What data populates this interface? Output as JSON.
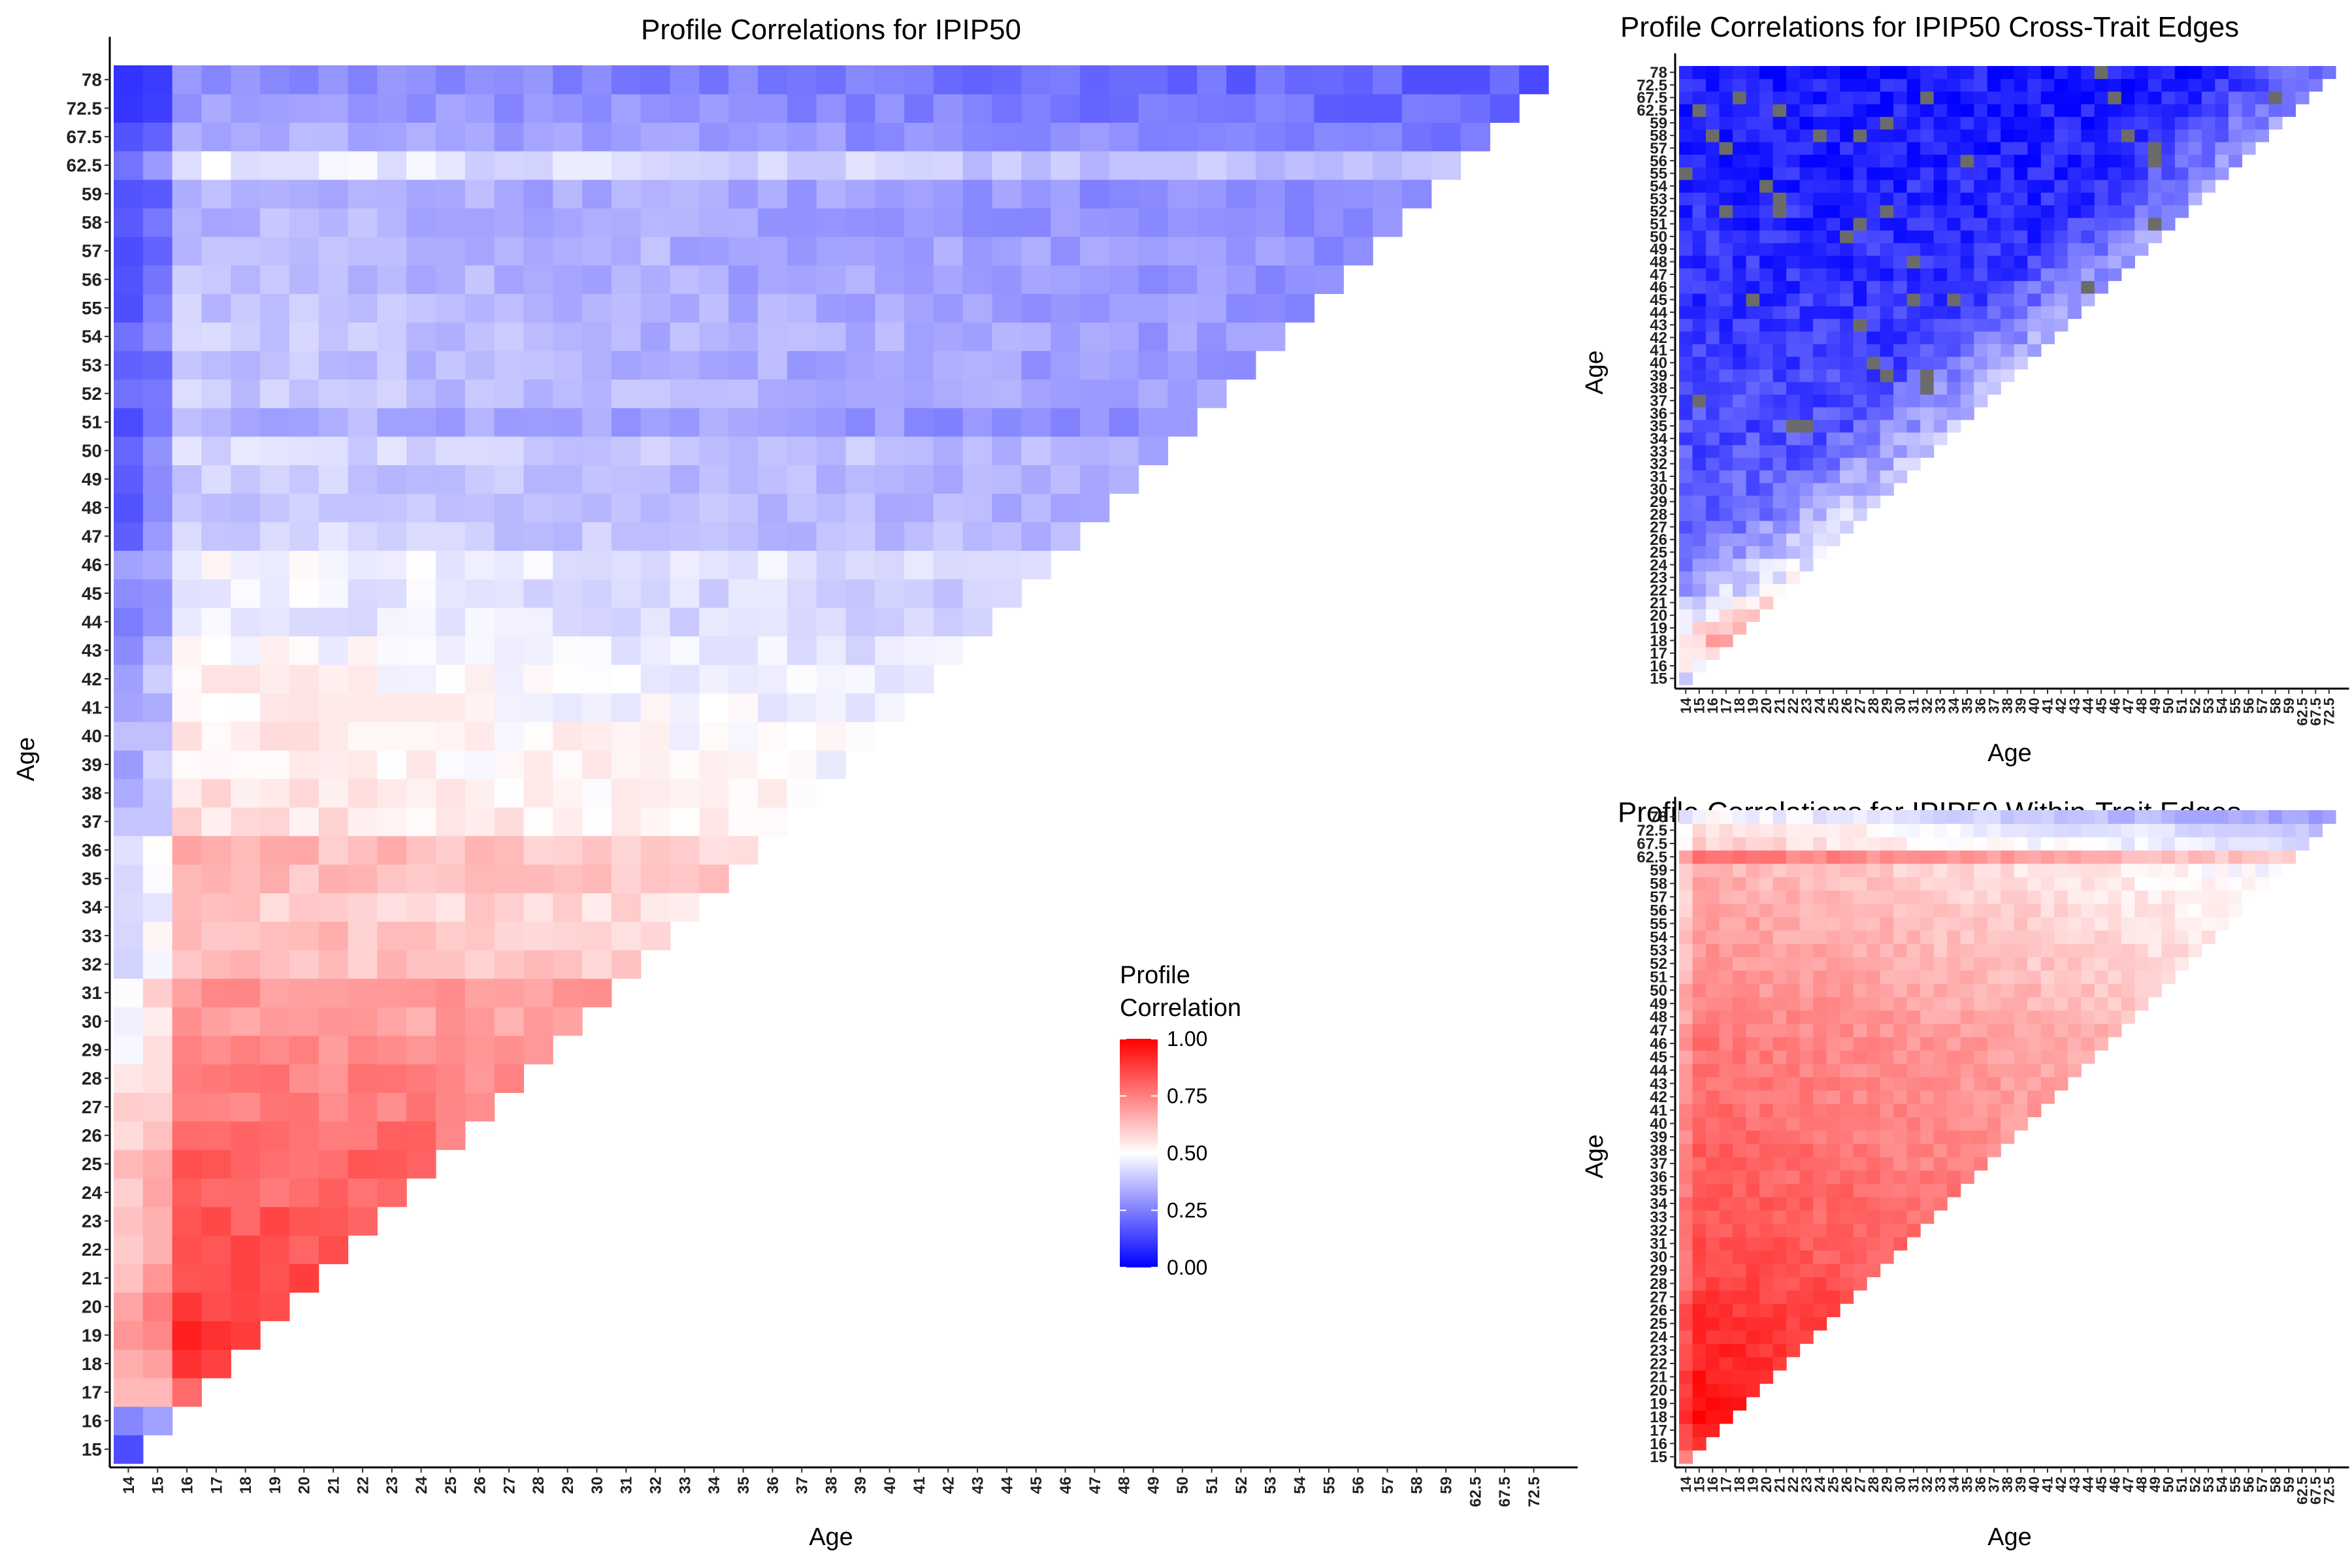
{
  "chart_data": [
    {
      "type": "heatmap",
      "title": "Profile Correlations for IPIP50",
      "xlabel": "Age",
      "ylabel": "Age",
      "ages": [
        "14",
        "15",
        "16",
        "17",
        "18",
        "19",
        "20",
        "21",
        "22",
        "23",
        "24",
        "25",
        "26",
        "27",
        "28",
        "29",
        "30",
        "31",
        "32",
        "33",
        "34",
        "35",
        "36",
        "37",
        "38",
        "39",
        "40",
        "41",
        "42",
        "43",
        "44",
        "45",
        "46",
        "47",
        "48",
        "49",
        "50",
        "51",
        "52",
        "53",
        "54",
        "55",
        "56",
        "57",
        "58",
        "59",
        "62.5",
        "67.5",
        "72.5",
        "78"
      ],
      "x_tick_labels": [
        "14",
        "15",
        "16",
        "17",
        "18",
        "19",
        "20",
        "21",
        "22",
        "23",
        "24",
        "25",
        "26",
        "27",
        "28",
        "29",
        "30",
        "31",
        "32",
        "33",
        "34",
        "35",
        "36",
        "37",
        "38",
        "39",
        "40",
        "41",
        "42",
        "43",
        "44",
        "45",
        "46",
        "47",
        "48",
        "49",
        "50",
        "51",
        "52",
        "53",
        "54",
        "55",
        "56",
        "57",
        "58",
        "59",
        "62.5",
        "67.5",
        "72.5"
      ],
      "y_tick_labels": [
        "15",
        "16",
        "17",
        "18",
        "19",
        "20",
        "21",
        "22",
        "23",
        "24",
        "25",
        "26",
        "27",
        "28",
        "29",
        "30",
        "31",
        "32",
        "33",
        "34",
        "35",
        "36",
        "37",
        "38",
        "39",
        "40",
        "41",
        "42",
        "43",
        "44",
        "45",
        "46",
        "47",
        "48",
        "49",
        "50",
        "51",
        "52",
        "53",
        "54",
        "55",
        "56",
        "57",
        "58",
        "59",
        "62.5",
        "67.5",
        "72.5",
        "78"
      ],
      "row_levels": {
        "15": 0.3,
        "16": 0.45,
        "17": 0.78,
        "18": 0.85,
        "19": 0.88,
        "20": 0.86,
        "21": 0.84,
        "22": 0.82,
        "23": 0.81,
        "24": 0.78,
        "25": 0.79,
        "26": 0.77,
        "27": 0.74,
        "28": 0.73,
        "29": 0.7,
        "30": 0.68,
        "31": 0.69,
        "32": 0.62,
        "33": 0.61,
        "34": 0.58,
        "35": 0.62,
        "36": 0.62,
        "37": 0.54,
        "38": 0.53,
        "39": 0.52,
        "40": 0.52,
        "41": 0.5,
        "42": 0.5,
        "43": 0.48,
        "44": 0.45,
        "45": 0.45,
        "46": 0.47,
        "47": 0.4,
        "48": 0.38,
        "49": 0.38,
        "50": 0.41,
        "51": 0.33,
        "52": 0.37,
        "53": 0.36,
        "54": 0.37,
        "55": 0.36,
        "56": 0.35,
        "57": 0.36,
        "58": 0.34,
        "59": 0.34,
        "62.5": 0.44,
        "67.5": 0.32,
        "72.5": 0.29,
        "78": 0.27
      }
    },
    {
      "type": "heatmap",
      "title": "Profile Correlations for IPIP50 Cross-Trait Edges",
      "xlabel": "Age",
      "ylabel": "Age",
      "ages": [
        "14",
        "15",
        "16",
        "17",
        "18",
        "19",
        "20",
        "21",
        "22",
        "23",
        "24",
        "25",
        "26",
        "27",
        "28",
        "29",
        "30",
        "31",
        "32",
        "33",
        "34",
        "35",
        "36",
        "37",
        "38",
        "39",
        "40",
        "41",
        "42",
        "43",
        "44",
        "45",
        "46",
        "47",
        "48",
        "49",
        "50",
        "51",
        "52",
        "53",
        "54",
        "55",
        "56",
        "57",
        "58",
        "59",
        "62.5",
        "67.5",
        "72.5",
        "78"
      ],
      "na_color": "#6b6b6b",
      "row_levels": {
        "15": 0.15,
        "16": 0.3,
        "17": 0.4,
        "18": 0.45,
        "19": 0.4,
        "20": 0.35,
        "21": 0.32,
        "22": 0.28,
        "23": 0.26,
        "24": 0.25,
        "25": 0.24,
        "26": 0.22,
        "27": 0.21,
        "28": 0.2,
        "29": 0.19,
        "30": 0.19,
        "31": 0.18,
        "32": 0.17,
        "33": 0.16,
        "34": 0.16,
        "35": 0.15,
        "36": 0.15,
        "37": 0.14,
        "38": 0.14,
        "39": 0.13,
        "40": 0.13,
        "41": 0.12,
        "42": 0.12,
        "43": 0.11,
        "44": 0.11,
        "45": 0.1,
        "46": 0.1,
        "47": 0.1,
        "48": 0.09,
        "49": 0.09,
        "50": 0.09,
        "51": 0.08,
        "52": 0.08,
        "53": 0.08,
        "54": 0.08,
        "55": 0.07,
        "56": 0.07,
        "57": 0.07,
        "58": 0.07,
        "59": 0.06,
        "62.5": 0.06,
        "67.5": 0.06,
        "72.5": 0.06,
        "78": 0.05
      }
    },
    {
      "type": "heatmap",
      "title": "Profile Correlations for IPIP50 Within-Trait Edges",
      "xlabel": "Age",
      "ylabel": "Age",
      "ages": [
        "14",
        "15",
        "16",
        "17",
        "18",
        "19",
        "20",
        "21",
        "22",
        "23",
        "24",
        "25",
        "26",
        "27",
        "28",
        "29",
        "30",
        "31",
        "32",
        "33",
        "34",
        "35",
        "36",
        "37",
        "38",
        "39",
        "40",
        "41",
        "42",
        "43",
        "44",
        "45",
        "46",
        "47",
        "48",
        "49",
        "50",
        "51",
        "52",
        "53",
        "54",
        "55",
        "56",
        "57",
        "58",
        "59",
        "62.5",
        "67.5",
        "72.5",
        "78"
      ],
      "row_levels": {
        "15": 0.85,
        "16": 0.92,
        "17": 0.95,
        "18": 0.97,
        "19": 0.97,
        "20": 0.96,
        "21": 0.95,
        "22": 0.94,
        "23": 0.93,
        "24": 0.92,
        "25": 0.92,
        "26": 0.91,
        "27": 0.9,
        "28": 0.88,
        "29": 0.87,
        "30": 0.86,
        "31": 0.86,
        "32": 0.85,
        "33": 0.84,
        "34": 0.84,
        "35": 0.84,
        "36": 0.83,
        "37": 0.82,
        "38": 0.82,
        "39": 0.81,
        "40": 0.8,
        "41": 0.8,
        "42": 0.79,
        "43": 0.79,
        "44": 0.78,
        "45": 0.78,
        "46": 0.78,
        "47": 0.77,
        "48": 0.76,
        "49": 0.75,
        "50": 0.74,
        "51": 0.73,
        "52": 0.72,
        "53": 0.71,
        "54": 0.7,
        "55": 0.7,
        "56": 0.69,
        "57": 0.68,
        "58": 0.67,
        "59": 0.66,
        "62.5": 0.78,
        "67.5": 0.6,
        "72.5": 0.57,
        "78": 0.5
      }
    }
  ],
  "legend": {
    "title_line1": "Profile",
    "title_line2": "Correlation",
    "breaks": [
      "1.00",
      "0.75",
      "0.50",
      "0.25",
      "0.00"
    ],
    "break_values": [
      1.0,
      0.75,
      0.5,
      0.25,
      0.0
    ],
    "low_color": "#0000ff",
    "mid_color": "#ffffff",
    "high_color": "#ff0000",
    "midpoint": 0.5,
    "limits": [
      0,
      1
    ]
  }
}
